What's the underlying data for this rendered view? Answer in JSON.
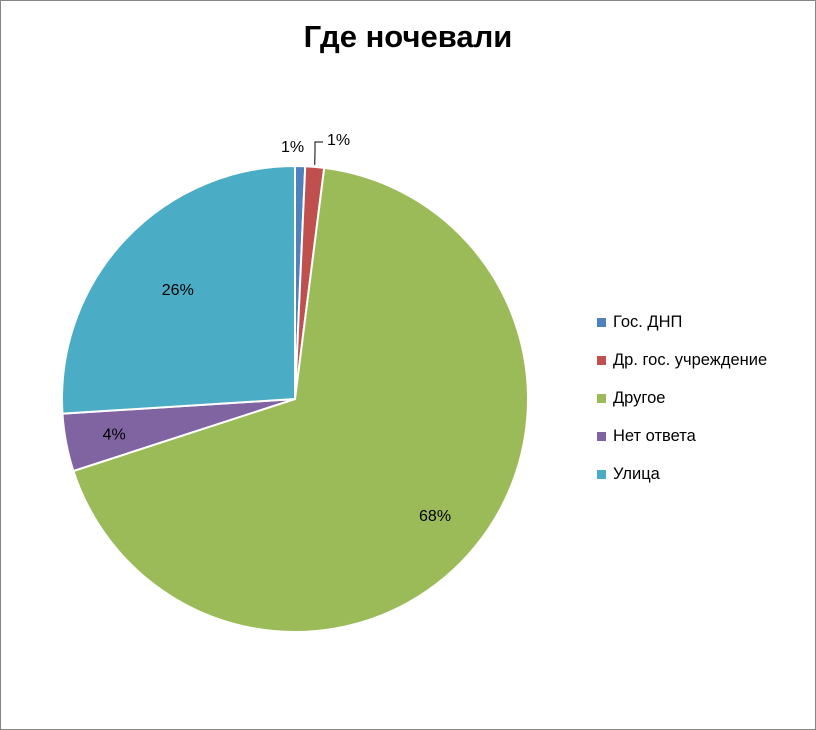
{
  "chart_data": {
    "type": "pie",
    "title": "Где ночевали",
    "slices": [
      {
        "name": "Гос. ДНП",
        "value": 0.7,
        "label": "1%",
        "color": "#4F81BD"
      },
      {
        "name": "Др. гос. учреждение",
        "value": 1.3,
        "label": "1%",
        "color": "#C0504D"
      },
      {
        "name": "Другое",
        "value": 68.0,
        "label": "68%",
        "color": "#9BBB59"
      },
      {
        "name": "Нет ответа",
        "value": 4.0,
        "label": "4%",
        "color": "#8064A2"
      },
      {
        "name": "Улица",
        "value": 26.0,
        "label": "26%",
        "color": "#4BACC6"
      }
    ],
    "start": "12 o'clock",
    "direction": "clockwise",
    "legend_position": "right"
  }
}
